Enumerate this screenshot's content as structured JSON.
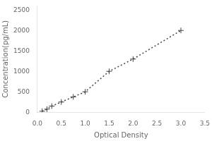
{
  "chart_data": {
    "type": "line",
    "x": [
      0.1,
      0.2,
      0.3,
      0.5,
      0.75,
      1.0,
      1.5,
      2.0,
      3.0
    ],
    "values": [
      25,
      75,
      150,
      250,
      375,
      500,
      1000,
      1300,
      2000
    ],
    "xlabel": "Optical Density",
    "ylabel": "Concentration(pg/mL)",
    "xlim": [
      0,
      3.5
    ],
    "ylim": [
      0,
      2600
    ],
    "xticks": [
      {
        "value": 0,
        "label": "0.0"
      },
      0.5,
      {
        "value": 1.0,
        "label": "1.0"
      },
      1.5,
      {
        "value": 2.0,
        "label": "2.0"
      },
      2.5,
      {
        "value": 3.0,
        "label": "3.0"
      },
      3.5
    ],
    "yticks": [
      0,
      500,
      1000,
      1500,
      2000,
      2500
    ],
    "color": "#444444",
    "marker": "plus",
    "line_style": "dotted",
    "grid": false
  }
}
